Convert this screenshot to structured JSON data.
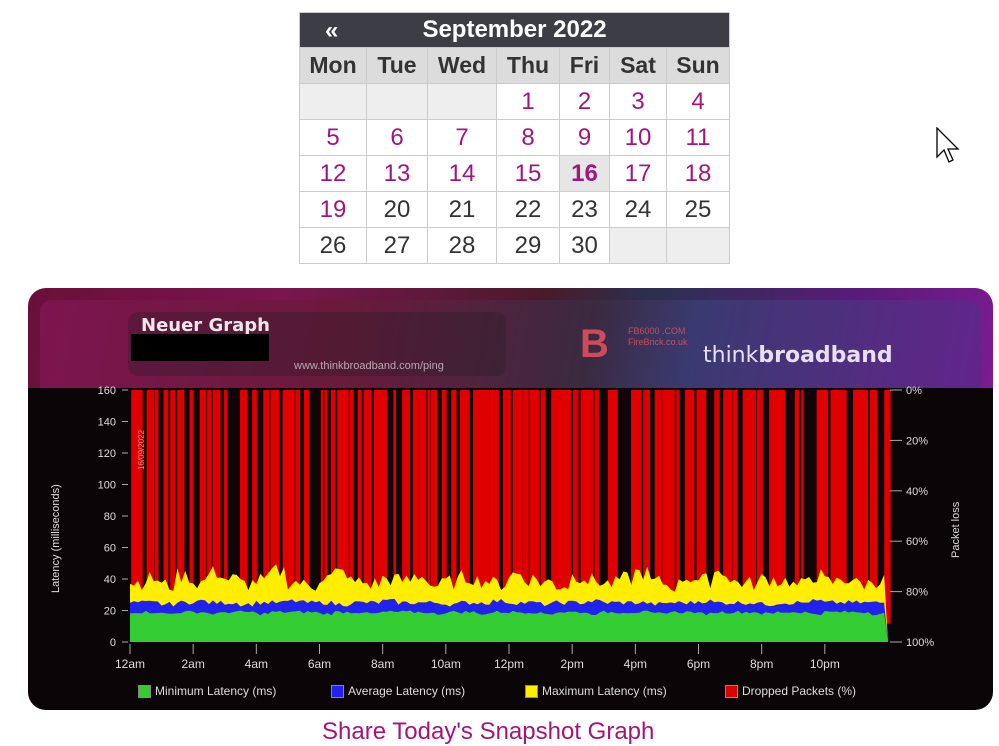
{
  "calendar": {
    "prev": "«",
    "title": "September 2022",
    "days": [
      "Mon",
      "Tue",
      "Wed",
      "Thu",
      "Fri",
      "Sat",
      "Sun"
    ],
    "weeks": [
      [
        null,
        null,
        null,
        1,
        2,
        3,
        4
      ],
      [
        5,
        6,
        7,
        8,
        9,
        10,
        11
      ],
      [
        12,
        13,
        14,
        15,
        16,
        17,
        18
      ],
      [
        19,
        20,
        21,
        22,
        23,
        24,
        25
      ],
      [
        26,
        27,
        28,
        29,
        30,
        null,
        null
      ]
    ],
    "linked_through": 19,
    "today": 16
  },
  "graph": {
    "title": "Neuer Graph",
    "url": "www.thinkbroadband.com/ping",
    "sponsor": "FB6000 .COM FireBrick.co.uk",
    "brand_thin": "think",
    "brand_bold": "broadband",
    "date_stamp": "16/09/2022"
  },
  "chart_data": {
    "type": "area",
    "ylabel": "Latency (milliseconds)",
    "y2label": "Packet loss",
    "ylim": [
      0,
      160
    ],
    "yticks": [
      "0",
      "20",
      "40",
      "60",
      "80",
      "100",
      "120",
      "140",
      "160"
    ],
    "y2ticks": [
      "0%",
      "20%",
      "40%",
      "60%",
      "80%",
      "100%"
    ],
    "xticks": [
      "12am",
      "2am",
      "4am",
      "6am",
      "8am",
      "10am",
      "12pm",
      "2pm",
      "4pm",
      "6pm",
      "8pm",
      "10pm"
    ],
    "x": "half-hour intervals 00:00-23:30",
    "series": [
      {
        "name": "Minimum Latency (ms)",
        "color": "#33cc33",
        "values": [
          19,
          19,
          18,
          19,
          19,
          18,
          19,
          19,
          18,
          19,
          19,
          19,
          18,
          19,
          19,
          18,
          19,
          19,
          19,
          18,
          19,
          19,
          18,
          19,
          19,
          19,
          18,
          19,
          19,
          18,
          19,
          19,
          19,
          18,
          19,
          19,
          18,
          19,
          19,
          19,
          18,
          19,
          19,
          18,
          19,
          19,
          19,
          18
        ]
      },
      {
        "name": "Average Latency (ms)",
        "color": "#2222ee",
        "values": [
          25,
          25,
          24,
          25,
          26,
          25,
          25,
          24,
          25,
          25,
          26,
          25,
          25,
          24,
          25,
          25,
          26,
          25,
          25,
          25,
          24,
          25,
          25,
          26,
          25,
          25,
          24,
          25,
          25,
          26,
          25,
          25,
          25,
          24,
          25,
          25,
          26,
          25,
          25,
          25,
          24,
          25,
          25,
          26,
          25,
          25,
          25,
          25
        ]
      },
      {
        "name": "Maximum Latency (ms)",
        "color": "#ffee00",
        "values": [
          38,
          40,
          36,
          42,
          38,
          44,
          40,
          37,
          39,
          45,
          38,
          36,
          41,
          44,
          38,
          37,
          40,
          39,
          42,
          36,
          38,
          41,
          39,
          37,
          43,
          40,
          38,
          36,
          42,
          39,
          37,
          40,
          44,
          38,
          36,
          41,
          39,
          45,
          38,
          37,
          40,
          39,
          36,
          42,
          38,
          40,
          37,
          39
        ]
      },
      {
        "name": "Dropped Packets (%)",
        "color": "#dd0000",
        "values": [
          100,
          60,
          100,
          40,
          100,
          100,
          20,
          100,
          80,
          100,
          100,
          30,
          100,
          100,
          70,
          100,
          20,
          100,
          100,
          100,
          50,
          100,
          100,
          100,
          80,
          100,
          100,
          60,
          100,
          100,
          100,
          40,
          100,
          100,
          100,
          90,
          100,
          100,
          60,
          100,
          100,
          100,
          30,
          100,
          100,
          100,
          80,
          100
        ]
      }
    ],
    "legend": "bottom"
  },
  "share": "Share Today's Snapshot Graph"
}
